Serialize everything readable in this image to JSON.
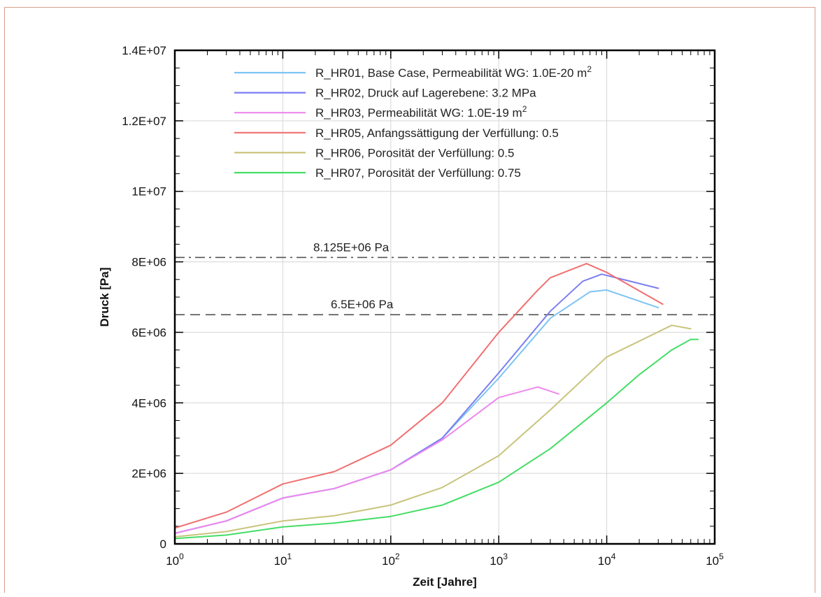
{
  "chart_data": {
    "type": "line",
    "xlabel": "Zeit [Jahre]",
    "ylabel": "Druck [Pa]",
    "x_scale": "log",
    "xlim": [
      1,
      100000
    ],
    "ylim": [
      0,
      14000000
    ],
    "grid": true,
    "legend_position": "top",
    "x_ticks": [
      {
        "value": 1,
        "base": "10",
        "exp": "0"
      },
      {
        "value": 10,
        "base": "10",
        "exp": "1"
      },
      {
        "value": 100,
        "base": "10",
        "exp": "2"
      },
      {
        "value": 1000,
        "base": "10",
        "exp": "3"
      },
      {
        "value": 10000,
        "base": "10",
        "exp": "4"
      },
      {
        "value": 100000,
        "base": "10",
        "exp": "5"
      }
    ],
    "y_ticks": [
      {
        "value": 0,
        "label": "0"
      },
      {
        "value": 2000000,
        "label": "2E+06"
      },
      {
        "value": 4000000,
        "label": "4E+06"
      },
      {
        "value": 6000000,
        "label": "6E+06"
      },
      {
        "value": 8000000,
        "label": "8E+06"
      },
      {
        "value": 10000000,
        "label": "1E+07"
      },
      {
        "value": 12000000,
        "label": "1.2E+07"
      },
      {
        "value": 14000000,
        "label": "1.4E+07"
      }
    ],
    "reference_lines": [
      {
        "y": 8125000,
        "label": "8.125E+06 Pa",
        "style": "dashdot",
        "color": "#555555"
      },
      {
        "y": 6500000,
        "label": "6.5E+06 Pa",
        "style": "dashed",
        "color": "#555555"
      }
    ],
    "series": [
      {
        "name": "R_HR01, Base Case, Permeabilität WG: 1.0E-20 m",
        "sup": "2",
        "color": "#7cc4f4",
        "x": [
          1,
          3,
          10,
          30,
          100,
          300,
          1000,
          3000,
          7000,
          10000,
          30000
        ],
        "y": [
          300000,
          650000,
          1300000,
          1570000,
          2100000,
          3000000,
          4700000,
          6400000,
          7150000,
          7200000,
          6700000
        ]
      },
      {
        "name": "R_HR02, Druck auf Lagerebene: 3.2 MPa",
        "sup": "",
        "color": "#7b7ef0",
        "x": [
          1,
          3,
          10,
          30,
          100,
          300,
          1000,
          3000,
          6000,
          9000,
          30000
        ],
        "y": [
          300000,
          650000,
          1300000,
          1570000,
          2100000,
          3000000,
          4850000,
          6600000,
          7450000,
          7650000,
          7250000
        ]
      },
      {
        "name": "R_HR03, Permeabilität WG: 1.0E-19 m",
        "sup": "2",
        "color": "#ee88ee",
        "x": [
          1,
          3,
          10,
          30,
          100,
          300,
          1000,
          2300,
          3600
        ],
        "y": [
          300000,
          650000,
          1300000,
          1570000,
          2100000,
          2950000,
          4150000,
          4450000,
          4250000
        ]
      },
      {
        "name": "R_HR05, Anfangssättigung der Verfüllung: 0.5",
        "sup": "",
        "color": "#f07070",
        "x": [
          1,
          3,
          10,
          30,
          100,
          300,
          1000,
          2300,
          3000,
          6500,
          10000,
          33000
        ],
        "y": [
          450000,
          900000,
          1700000,
          2050000,
          2800000,
          4000000,
          6000000,
          7200000,
          7550000,
          7950000,
          7700000,
          6800000
        ]
      },
      {
        "name": "R_HR06, Porosität der Verfüllung: 0.5",
        "sup": "",
        "color": "#c8c47c",
        "x": [
          1,
          3,
          10,
          30,
          100,
          300,
          1000,
          3000,
          10000,
          40000,
          60000
        ],
        "y": [
          200000,
          350000,
          650000,
          800000,
          1100000,
          1600000,
          2500000,
          3800000,
          5300000,
          6200000,
          6100000
        ]
      },
      {
        "name": "R_HR07, Porosität der Verfüllung: 0.75",
        "sup": "",
        "color": "#44dd66",
        "x": [
          1,
          3,
          10,
          30,
          100,
          300,
          1000,
          3000,
          10000,
          20000,
          40000,
          60000,
          70000
        ],
        "y": [
          150000,
          250000,
          480000,
          590000,
          780000,
          1100000,
          1750000,
          2700000,
          4000000,
          4800000,
          5500000,
          5800000,
          5800000
        ]
      }
    ]
  }
}
